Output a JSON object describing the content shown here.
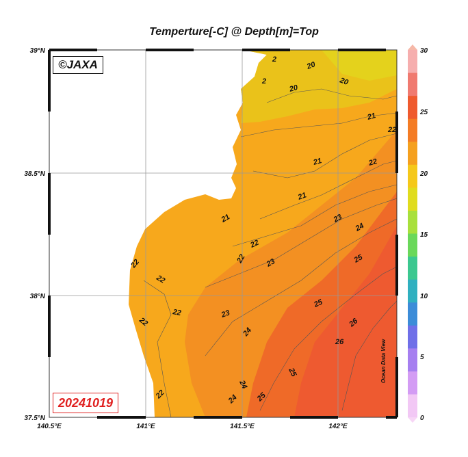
{
  "title": "Temperture[-C] @ Depth[m]=Top",
  "copyright": "©JAXA",
  "date": "20241019",
  "credit": "Ocean Data View",
  "lat_labels": [
    "39°N",
    "38.5°N",
    "38°N",
    "37.5°N"
  ],
  "lon_labels": [
    "140.5°E",
    "141°E",
    "141.5°E",
    "142°E"
  ],
  "colorbar": {
    "ticks": [
      "30",
      "25",
      "20",
      "15",
      "10",
      "5",
      "0"
    ],
    "range": [
      0,
      30
    ],
    "colors": [
      "#f2c8f5",
      "#d39cf4",
      "#a67ff0",
      "#6f6fe8",
      "#3c8cd8",
      "#30b0c0",
      "#3cc890",
      "#6ad85a",
      "#a8e03c",
      "#e0dc1e",
      "#f5c81a",
      "#f5a01e",
      "#f47c24",
      "#ef5a2e",
      "#f07a70",
      "#f6aeae"
    ]
  },
  "contour_labels": [
    "20",
    "20",
    "20",
    "2",
    "2",
    "21",
    "22",
    "21",
    "22",
    "21",
    "23",
    "24",
    "21",
    "25",
    "22",
    "22",
    "23",
    "22",
    "25",
    "23",
    "26",
    "22",
    "24",
    "26",
    "25",
    "24",
    "25",
    "22",
    "24",
    "22"
  ]
}
